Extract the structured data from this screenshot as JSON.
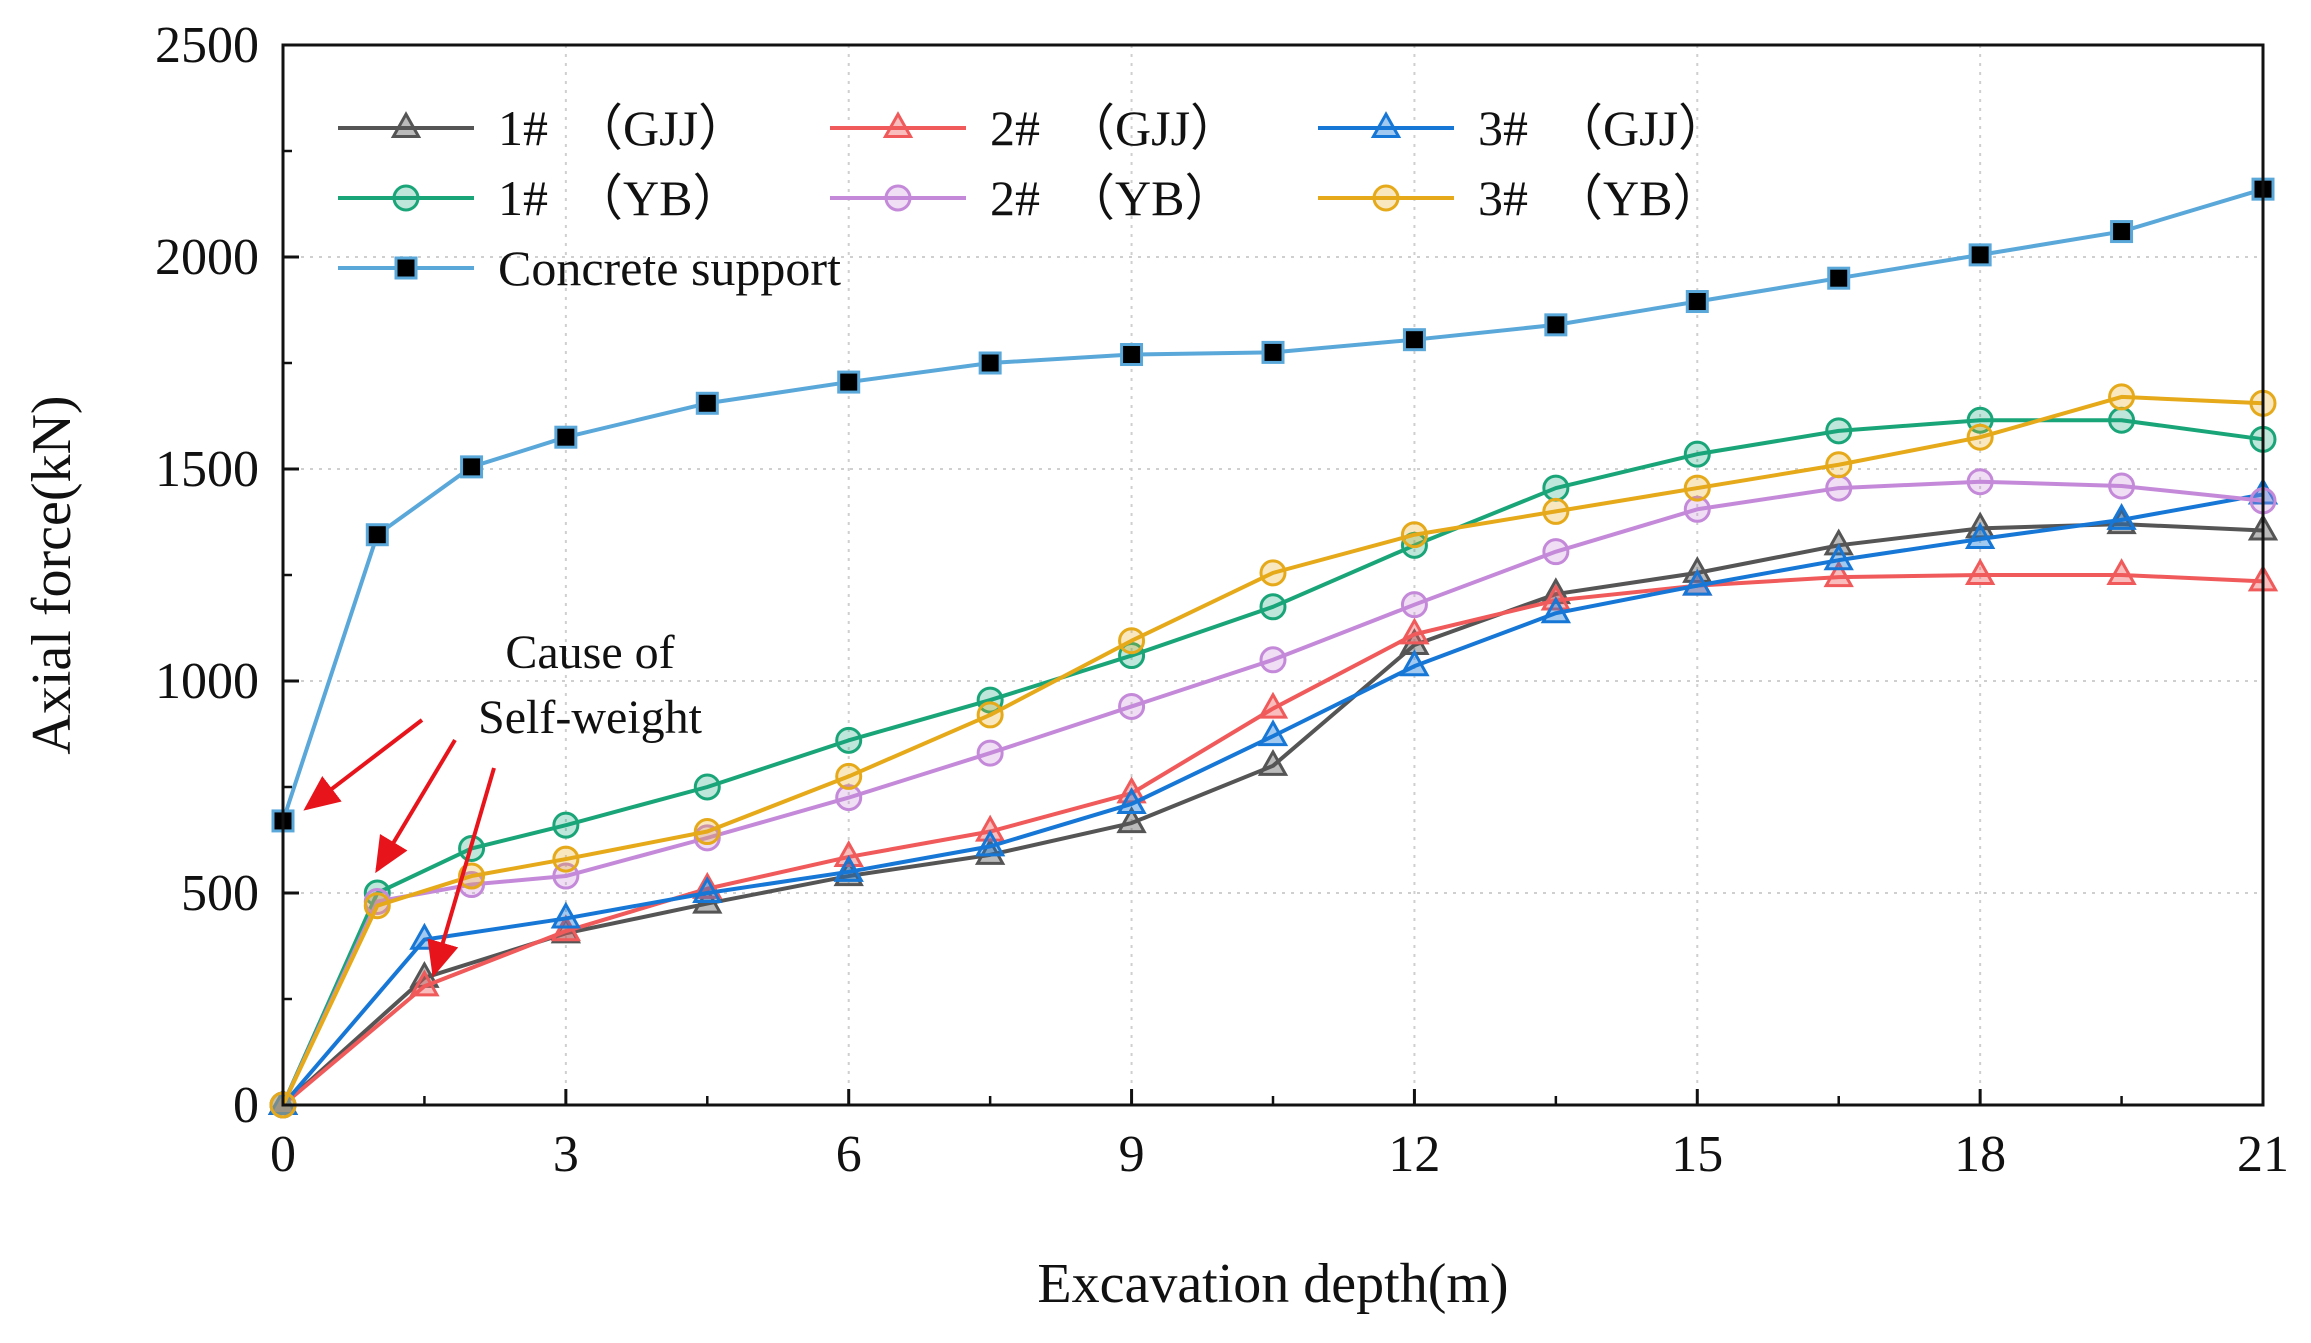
{
  "chart_data": {
    "type": "line",
    "title": "",
    "xlabel": "Excavation depth(m)",
    "ylabel": "Axial force(kN)",
    "xlim": [
      0,
      21
    ],
    "ylim": [
      0,
      2500
    ],
    "xticks": [
      0,
      3,
      6,
      9,
      12,
      15,
      18,
      21
    ],
    "yticks": [
      0,
      500,
      1000,
      1500,
      2000,
      2500
    ],
    "xtick_labels": [
      "0",
      "3",
      "6",
      "9",
      "12",
      "15",
      "18",
      "21"
    ],
    "ytick_labels": [
      "0",
      "500",
      "1000",
      "1500",
      "2000",
      "2500"
    ],
    "grid": true,
    "legend_position": "top-left",
    "series": [
      {
        "name": "1#　（GJJ）",
        "color": "#555555",
        "marker": "triangle",
        "x": [
          0,
          1.5,
          3,
          4.5,
          6,
          7.5,
          9,
          10.5,
          12,
          13.5,
          15,
          16.5,
          18,
          19.5,
          21
        ],
        "y": [
          0,
          300,
          405,
          475,
          540,
          590,
          665,
          800,
          1085,
          1205,
          1255,
          1320,
          1360,
          1370,
          1355
        ]
      },
      {
        "name": "2#　（GJJ）",
        "color": "#f05a5a",
        "marker": "triangle",
        "x": [
          0,
          1.5,
          3,
          4.5,
          6,
          7.5,
          9,
          10.5,
          12,
          13.5,
          15,
          16.5,
          18,
          19.5,
          21
        ],
        "y": [
          0,
          280,
          410,
          510,
          585,
          645,
          735,
          935,
          1110,
          1190,
          1225,
          1245,
          1250,
          1250,
          1235
        ]
      },
      {
        "name": "3#　（GJJ）",
        "color": "#1777d6",
        "marker": "triangle",
        "x": [
          0,
          1.5,
          3,
          4.5,
          6,
          7.5,
          9,
          10.5,
          12,
          13.5,
          15,
          16.5,
          18,
          19.5,
          21
        ],
        "y": [
          0,
          390,
          440,
          500,
          550,
          610,
          710,
          870,
          1035,
          1160,
          1225,
          1285,
          1335,
          1380,
          1440
        ]
      },
      {
        "name": "1#　（YB）",
        "color": "#1aa579",
        "marker": "circle",
        "x": [
          0,
          1,
          2,
          3,
          4.5,
          6,
          7.5,
          9,
          10.5,
          12,
          13.5,
          15,
          16.5,
          18,
          19.5,
          21
        ],
        "y": [
          0,
          500,
          605,
          660,
          750,
          860,
          955,
          1060,
          1175,
          1320,
          1455,
          1535,
          1590,
          1615,
          1615,
          1570
        ]
      },
      {
        "name": "2#　（YB）",
        "color": "#c48ad9",
        "marker": "circle",
        "x": [
          0,
          1,
          2,
          3,
          4.5,
          6,
          7.5,
          9,
          10.5,
          12,
          13.5,
          15,
          16.5,
          18,
          19.5,
          21
        ],
        "y": [
          0,
          480,
          520,
          540,
          630,
          725,
          830,
          940,
          1050,
          1180,
          1305,
          1405,
          1455,
          1470,
          1460,
          1425
        ]
      },
      {
        "name": "3#　（YB）",
        "color": "#e5a91a",
        "marker": "circle",
        "x": [
          0,
          1,
          2,
          3,
          4.5,
          6,
          7.5,
          9,
          10.5,
          12,
          13.5,
          15,
          16.5,
          18,
          19.5,
          21
        ],
        "y": [
          0,
          470,
          540,
          580,
          645,
          775,
          920,
          1095,
          1255,
          1345,
          1400,
          1455,
          1510,
          1575,
          1670,
          1655
        ]
      },
      {
        "name": "Concrete support",
        "color": "#5aa7da",
        "marker": "square",
        "x": [
          0,
          1,
          2,
          3,
          4.5,
          6,
          7.5,
          9,
          10.5,
          12,
          13.5,
          15,
          16.5,
          18,
          19.5,
          21
        ],
        "y": [
          670,
          1345,
          1505,
          1575,
          1655,
          1705,
          1750,
          1770,
          1775,
          1805,
          1840,
          1895,
          1950,
          2005,
          2060,
          2160
        ]
      }
    ],
    "annotations": [
      {
        "lines": [
          "Cause of",
          "Self-weight"
        ],
        "arrow_color": "#e8141b",
        "arrows_point_to": [
          {
            "x": 0.25,
            "y": 700
          },
          {
            "x": 1.0,
            "y": 555
          },
          {
            "x": 1.6,
            "y": 310
          }
        ]
      }
    ]
  }
}
